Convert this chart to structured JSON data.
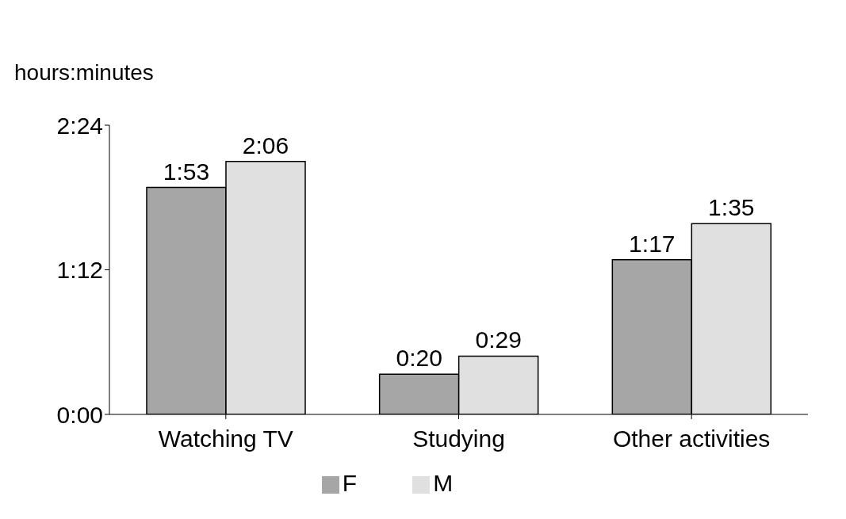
{
  "chart_data": {
    "type": "bar",
    "ylabel": "hours:minutes",
    "categories": [
      "Watching TV",
      "Studying",
      "Other  activities"
    ],
    "series": [
      {
        "name": "F",
        "color": "#a6a6a6",
        "values": [
          113,
          20,
          77
        ],
        "value_labels": [
          "1:53",
          "0:20",
          "1:17"
        ]
      },
      {
        "name": "M",
        "color": "#e0e0e0",
        "values": [
          126,
          29,
          95
        ],
        "value_labels": [
          "2:06",
          "0:29",
          "1:35"
        ]
      }
    ],
    "ylim": [
      0,
      144
    ],
    "yticks": [
      {
        "value": 0,
        "label": "0:00"
      },
      {
        "value": 72,
        "label": "1:12"
      },
      {
        "value": 144,
        "label": "2:24"
      }
    ],
    "grid": false,
    "legend": "bottom"
  }
}
